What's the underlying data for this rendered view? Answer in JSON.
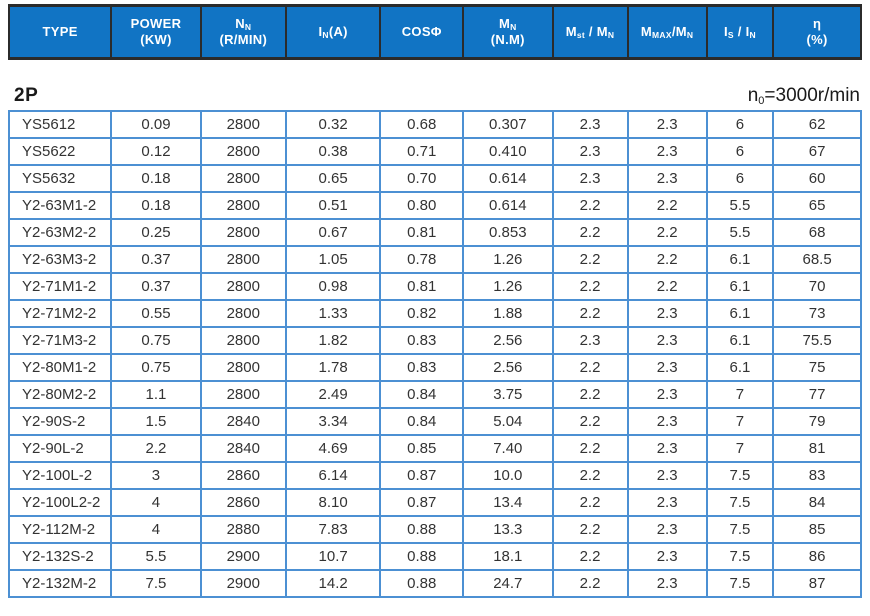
{
  "colors": {
    "header_bg": "#1174c4",
    "header_border": "#2b2b2b",
    "header_text": "#ffffff",
    "body_border": "#4c90d3",
    "body_text": "#333333",
    "note_text": "#1a1a1a"
  },
  "section": {
    "label": "2P",
    "note_parts": [
      {
        "t": "n"
      },
      {
        "t": "0",
        "sub": true
      },
      {
        "t": "=3000r/min"
      }
    ]
  },
  "table": {
    "headers": [
      {
        "id": "type",
        "parts": [
          {
            "t": "TYPE"
          }
        ]
      },
      {
        "id": "power",
        "parts": [
          {
            "t": "POWER"
          }
        ],
        "line2": "(KW)"
      },
      {
        "id": "rated-speed",
        "parts": [
          {
            "t": "N"
          },
          {
            "t": "N",
            "sub": true
          }
        ],
        "line2": "(R/MIN)"
      },
      {
        "id": "rated-current",
        "parts": [
          {
            "t": "I"
          },
          {
            "t": "N",
            "sub": true
          },
          {
            "t": "(A)"
          }
        ]
      },
      {
        "id": "cos-phi",
        "parts": [
          {
            "t": "COSΦ"
          }
        ]
      },
      {
        "id": "rated-torque",
        "parts": [
          {
            "t": "M"
          },
          {
            "t": "N",
            "sub": true
          }
        ],
        "line2": "(N.M)"
      },
      {
        "id": "mst-mn",
        "parts": [
          {
            "t": "M"
          },
          {
            "t": "st",
            "sub": true
          },
          {
            "t": " / "
          },
          {
            "t": "M"
          },
          {
            "t": "N",
            "sub": true
          }
        ]
      },
      {
        "id": "mmax-mn",
        "parts": [
          {
            "t": "M"
          },
          {
            "t": "MAX",
            "sub": true
          },
          {
            "t": "/"
          },
          {
            "t": "M"
          },
          {
            "t": "N",
            "sub": true
          }
        ]
      },
      {
        "id": "is-in",
        "parts": [
          {
            "t": "I"
          },
          {
            "t": "S",
            "sub": true
          },
          {
            "t": " / "
          },
          {
            "t": "I"
          },
          {
            "t": "N",
            "sub": true
          }
        ]
      },
      {
        "id": "efficiency",
        "parts": [
          {
            "t": "η"
          }
        ],
        "line2": "(%)"
      }
    ],
    "rows": [
      [
        "YS5612",
        "0.09",
        "2800",
        "0.32",
        "0.68",
        "0.307",
        "2.3",
        "2.3",
        "6",
        "62"
      ],
      [
        "YS5622",
        "0.12",
        "2800",
        "0.38",
        "0.71",
        "0.410",
        "2.3",
        "2.3",
        "6",
        "67"
      ],
      [
        "YS5632",
        "0.18",
        "2800",
        "0.65",
        "0.70",
        "0.614",
        "2.3",
        "2.3",
        "6",
        "60"
      ],
      [
        "Y2-63M1-2",
        "0.18",
        "2800",
        "0.51",
        "0.80",
        "0.614",
        "2.2",
        "2.2",
        "5.5",
        "65"
      ],
      [
        "Y2-63M2-2",
        "0.25",
        "2800",
        "0.67",
        "0.81",
        "0.853",
        "2.2",
        "2.2",
        "5.5",
        "68"
      ],
      [
        "Y2-63M3-2",
        "0.37",
        "2800",
        "1.05",
        "0.78",
        "1.26",
        "2.2",
        "2.2",
        "6.1",
        "68.5"
      ],
      [
        "Y2-71M1-2",
        "0.37",
        "2800",
        "0.98",
        "0.81",
        "1.26",
        "2.2",
        "2.2",
        "6.1",
        "70"
      ],
      [
        "Y2-71M2-2",
        "0.55",
        "2800",
        "1.33",
        "0.82",
        "1.88",
        "2.2",
        "2.3",
        "6.1",
        "73"
      ],
      [
        "Y2-71M3-2",
        "0.75",
        "2800",
        "1.82",
        "0.83",
        "2.56",
        "2.3",
        "2.3",
        "6.1",
        "75.5"
      ],
      [
        "Y2-80M1-2",
        "0.75",
        "2800",
        "1.78",
        "0.83",
        "2.56",
        "2.2",
        "2.3",
        "6.1",
        "75"
      ],
      [
        "Y2-80M2-2",
        "1.1",
        "2800",
        "2.49",
        "0.84",
        "3.75",
        "2.2",
        "2.3",
        "7",
        "77"
      ],
      [
        "Y2-90S-2",
        "1.5",
        "2840",
        "3.34",
        "0.84",
        "5.04",
        "2.2",
        "2.3",
        "7",
        "79"
      ],
      [
        "Y2-90L-2",
        "2.2",
        "2840",
        "4.69",
        "0.85",
        "7.40",
        "2.2",
        "2.3",
        "7",
        "81"
      ],
      [
        "Y2-100L-2",
        "3",
        "2860",
        "6.14",
        "0.87",
        "10.0",
        "2.2",
        "2.3",
        "7.5",
        "83"
      ],
      [
        "Y2-100L2-2",
        "4",
        "2860",
        "8.10",
        "0.87",
        "13.4",
        "2.2",
        "2.3",
        "7.5",
        "84"
      ],
      [
        "Y2-112M-2",
        "4",
        "2880",
        "7.83",
        "0.88",
        "13.3",
        "2.2",
        "2.3",
        "7.5",
        "85"
      ],
      [
        "Y2-132S-2",
        "5.5",
        "2900",
        "10.7",
        "0.88",
        "18.1",
        "2.2",
        "2.3",
        "7.5",
        "86"
      ],
      [
        "Y2-132M-2",
        "7.5",
        "2900",
        "14.2",
        "0.88",
        "24.7",
        "2.2",
        "2.3",
        "7.5",
        "87"
      ]
    ]
  }
}
